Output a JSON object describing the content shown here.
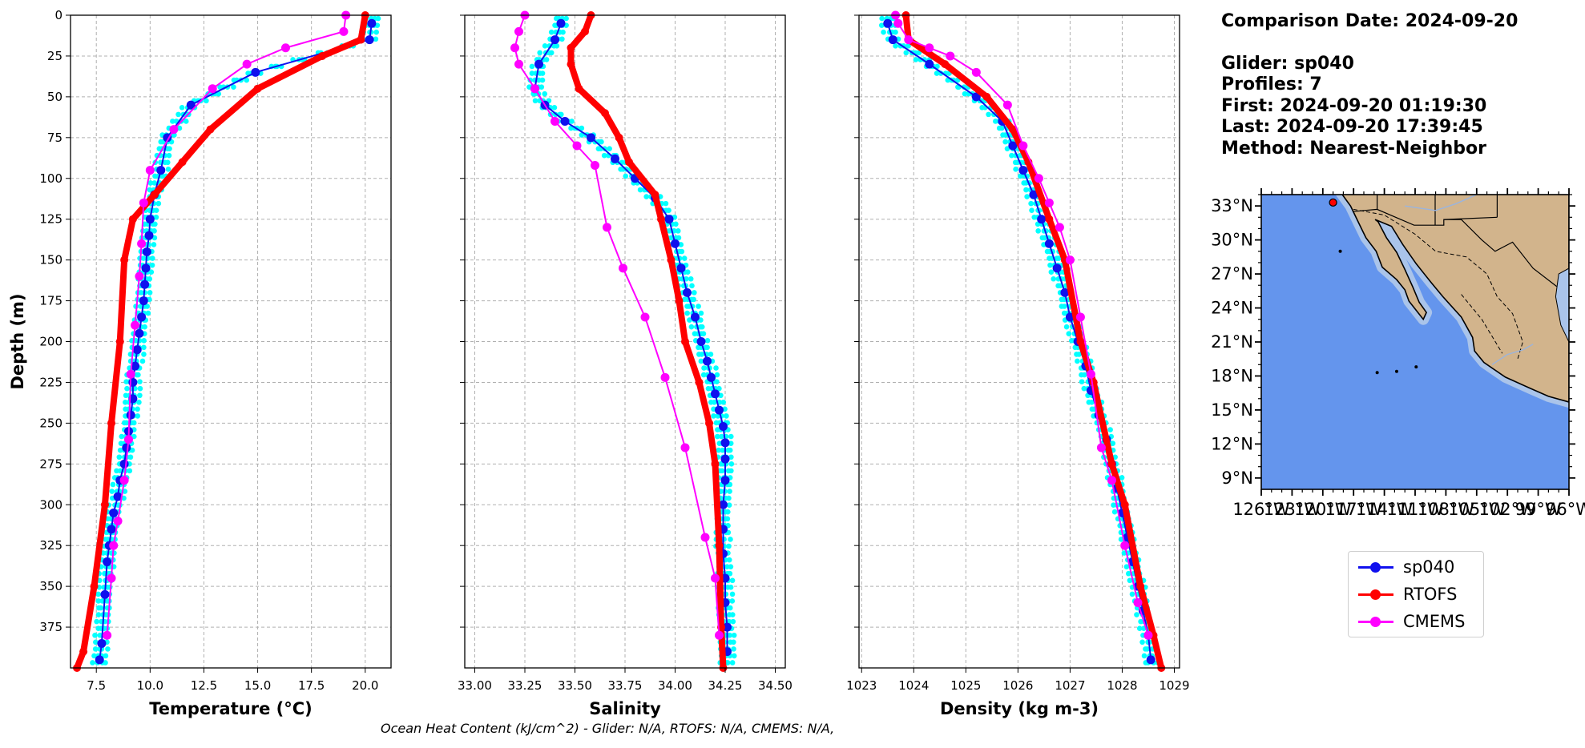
{
  "info": {
    "comparison_date": "Comparison Date: 2024-09-20",
    "glider": "Glider: sp040",
    "profiles": "Profiles: 7",
    "first": "First: 2024-09-20 01:19:30",
    "last": "Last: 2024-09-20 17:39:45",
    "method": "Method: Nearest-Neighbor"
  },
  "footer_note": "Ocean Heat Content (kJ/cm^2) - Glider: N/A,  RTOFS: N/A,  CMEMS: N/A,",
  "legend": [
    {
      "label": "sp040",
      "color": "#1010ee"
    },
    {
      "label": "RTOFS",
      "color": "#ff0000"
    },
    {
      "label": "CMEMS",
      "color": "#ff00ff"
    }
  ],
  "colors": {
    "glider": "#1010ee",
    "rtofs": "#ff0000",
    "cmems": "#ff00ff",
    "glider_profiles": "#00ffff",
    "ocean": "#6495ed",
    "land": "#d2b48c",
    "shelf": "#aac4ea"
  },
  "chart_data": [
    {
      "type": "line",
      "xlabel": "Temperature (°C)",
      "ylabel": "Depth (m)",
      "xlim": [
        6.3,
        21.2
      ],
      "ylim": [
        400,
        0
      ],
      "xticks": [
        "7.5",
        "10.0",
        "12.5",
        "15.0",
        "17.5",
        "20.0"
      ],
      "xtick_values": [
        7.5,
        10.0,
        12.5,
        15.0,
        17.5,
        20.0
      ],
      "yticks": [
        "0",
        "25",
        "50",
        "75",
        "100",
        "125",
        "150",
        "175",
        "200",
        "225",
        "250",
        "275",
        "300",
        "325",
        "350",
        "375"
      ],
      "ytick_values": [
        0,
        25,
        50,
        75,
        100,
        125,
        150,
        175,
        200,
        225,
        250,
        275,
        300,
        325,
        350,
        375
      ],
      "grid": true,
      "series": [
        {
          "name": "sp040",
          "x": [
            20.3,
            20.2,
            14.9,
            11.9,
            10.8,
            10.5,
            10.2,
            10.0,
            9.95,
            9.85,
            9.8,
            9.75,
            9.7,
            9.6,
            9.5,
            9.4,
            9.3,
            9.2,
            9.2,
            9.1,
            9.0,
            8.9,
            8.8,
            8.6,
            8.5,
            8.3,
            8.2,
            8.1,
            8.0,
            7.9,
            7.75,
            7.65
          ],
          "y": [
            5,
            15,
            35,
            55,
            75,
            95,
            110,
            125,
            135,
            145,
            155,
            165,
            175,
            185,
            195,
            205,
            215,
            225,
            235,
            245,
            255,
            265,
            275,
            285,
            295,
            305,
            315,
            325,
            335,
            355,
            385,
            395
          ]
        },
        {
          "name": "RTOFS",
          "x": [
            20.0,
            19.8,
            18.0,
            15.0,
            12.8,
            11.5,
            10.2,
            9.2,
            8.8,
            8.6,
            8.2,
            7.9,
            7.4,
            6.9,
            6.6
          ],
          "y": [
            0,
            15,
            25,
            45,
            70,
            90,
            110,
            125,
            150,
            200,
            250,
            300,
            350,
            390,
            400
          ]
        },
        {
          "name": "CMEMS",
          "x": [
            19.1,
            19.0,
            16.3,
            14.5,
            12.9,
            11.1,
            10.0,
            9.7,
            9.6,
            9.5,
            9.3,
            9.1,
            9.0,
            8.8,
            8.5,
            8.3,
            8.2,
            8.0
          ],
          "y": [
            0,
            10,
            20,
            30,
            45,
            70,
            95,
            115,
            140,
            160,
            190,
            220,
            260,
            285,
            310,
            325,
            345,
            380
          ]
        }
      ]
    },
    {
      "type": "line",
      "xlabel": "Salinity",
      "ylabel": "",
      "xlim": [
        32.95,
        34.55
      ],
      "ylim": [
        400,
        0
      ],
      "xticks": [
        "33.00",
        "33.25",
        "33.50",
        "33.75",
        "34.00",
        "34.25",
        "34.50"
      ],
      "xtick_values": [
        33.0,
        33.25,
        33.5,
        33.75,
        34.0,
        34.25,
        34.5
      ],
      "grid": true,
      "series": [
        {
          "name": "sp040",
          "x": [
            33.43,
            33.4,
            33.32,
            33.3,
            33.35,
            33.45,
            33.58,
            33.7,
            33.8,
            33.9,
            33.97,
            34.0,
            34.03,
            34.06,
            34.1,
            34.13,
            34.16,
            34.18,
            34.2,
            34.22,
            34.24,
            34.25,
            34.25,
            34.25,
            34.24,
            34.24,
            34.24,
            34.25,
            34.25,
            34.26,
            34.26
          ],
          "y": [
            5,
            15,
            30,
            45,
            55,
            65,
            75,
            88,
            100,
            112,
            125,
            140,
            155,
            170,
            185,
            200,
            212,
            222,
            232,
            242,
            252,
            262,
            272,
            285,
            300,
            315,
            330,
            345,
            360,
            375,
            390
          ]
        },
        {
          "name": "RTOFS",
          "x": [
            33.58,
            33.55,
            33.48,
            33.48,
            33.52,
            33.65,
            33.72,
            33.77,
            33.9,
            33.93,
            33.98,
            34.02,
            34.05,
            34.12,
            34.17,
            34.2,
            34.22,
            34.23,
            34.24
          ],
          "y": [
            0,
            10,
            20,
            30,
            45,
            60,
            75,
            90,
            110,
            125,
            150,
            175,
            200,
            225,
            250,
            275,
            325,
            375,
            400
          ]
        },
        {
          "name": "CMEMS",
          "x": [
            33.25,
            33.22,
            33.2,
            33.22,
            33.3,
            33.4,
            33.51,
            33.6,
            33.66,
            33.74,
            33.85,
            33.95,
            34.05,
            34.15,
            34.2,
            34.22
          ],
          "y": [
            0,
            10,
            20,
            30,
            45,
            65,
            80,
            92,
            130,
            155,
            185,
            222,
            265,
            320,
            345,
            380
          ]
        }
      ]
    },
    {
      "type": "line",
      "xlabel": "Density (kg m-3)",
      "ylabel": "",
      "xlim": [
        1022.95,
        1029.1
      ],
      "ylim": [
        400,
        0
      ],
      "xticks": [
        "1023",
        "1024",
        "1025",
        "1026",
        "1027",
        "1028",
        "1029"
      ],
      "xtick_values": [
        1023,
        1024,
        1025,
        1026,
        1027,
        1028,
        1029
      ],
      "grid": true,
      "series": [
        {
          "name": "sp040",
          "x": [
            1023.5,
            1023.6,
            1024.3,
            1025.2,
            1025.7,
            1025.9,
            1026.1,
            1026.3,
            1026.45,
            1026.6,
            1026.75,
            1026.9,
            1027.0,
            1027.15,
            1027.3,
            1027.4,
            1027.55,
            1027.7,
            1027.8,
            1027.9,
            1028.0,
            1028.1,
            1028.2,
            1028.3,
            1028.4,
            1028.5,
            1028.55
          ],
          "y": [
            5,
            15,
            30,
            50,
            65,
            80,
            95,
            110,
            125,
            140,
            155,
            170,
            185,
            200,
            215,
            230,
            245,
            260,
            275,
            290,
            305,
            320,
            335,
            350,
            365,
            380,
            395
          ]
        },
        {
          "name": "RTOFS",
          "x": [
            1023.85,
            1023.9,
            1024.6,
            1025.4,
            1025.9,
            1026.2,
            1026.6,
            1026.9,
            1027.2,
            1027.45,
            1027.8,
            1028.05,
            1028.35,
            1028.6,
            1028.75
          ],
          "y": [
            0,
            15,
            30,
            50,
            70,
            90,
            125,
            150,
            200,
            225,
            275,
            300,
            350,
            380,
            400
          ]
        },
        {
          "name": "CMEMS",
          "x": [
            1023.65,
            1023.7,
            1023.9,
            1024.3,
            1024.7,
            1025.2,
            1025.8,
            1026.1,
            1026.4,
            1026.6,
            1026.8,
            1027.0,
            1027.2,
            1027.4,
            1027.6,
            1027.8,
            1028.05,
            1028.3,
            1028.5
          ],
          "y": [
            0,
            5,
            15,
            20,
            25,
            35,
            55,
            80,
            100,
            115,
            130,
            150,
            185,
            220,
            265,
            285,
            325,
            360,
            380
          ]
        }
      ]
    },
    {
      "type": "map",
      "lat_ticks": [
        "33°N",
        "30°N",
        "27°N",
        "24°N",
        "21°N",
        "18°N",
        "15°N",
        "12°N",
        "9°N"
      ],
      "lat_values": [
        33,
        30,
        27,
        24,
        21,
        18,
        15,
        12,
        9
      ],
      "lon_ticks": [
        "126°W",
        "123°W",
        "120°W",
        "117°W",
        "114°W",
        "111°W",
        "108°W",
        "105°W",
        "102°W",
        "99°W",
        "96°W"
      ],
      "lon_values": [
        -126,
        -123,
        -120,
        -117,
        -114,
        -111,
        -108,
        -105,
        -102,
        -99,
        -96
      ],
      "xlim": [
        -126,
        -96
      ],
      "ylim": [
        8,
        34
      ],
      "glider_location": {
        "lon": -119,
        "lat": 33.3
      }
    }
  ]
}
